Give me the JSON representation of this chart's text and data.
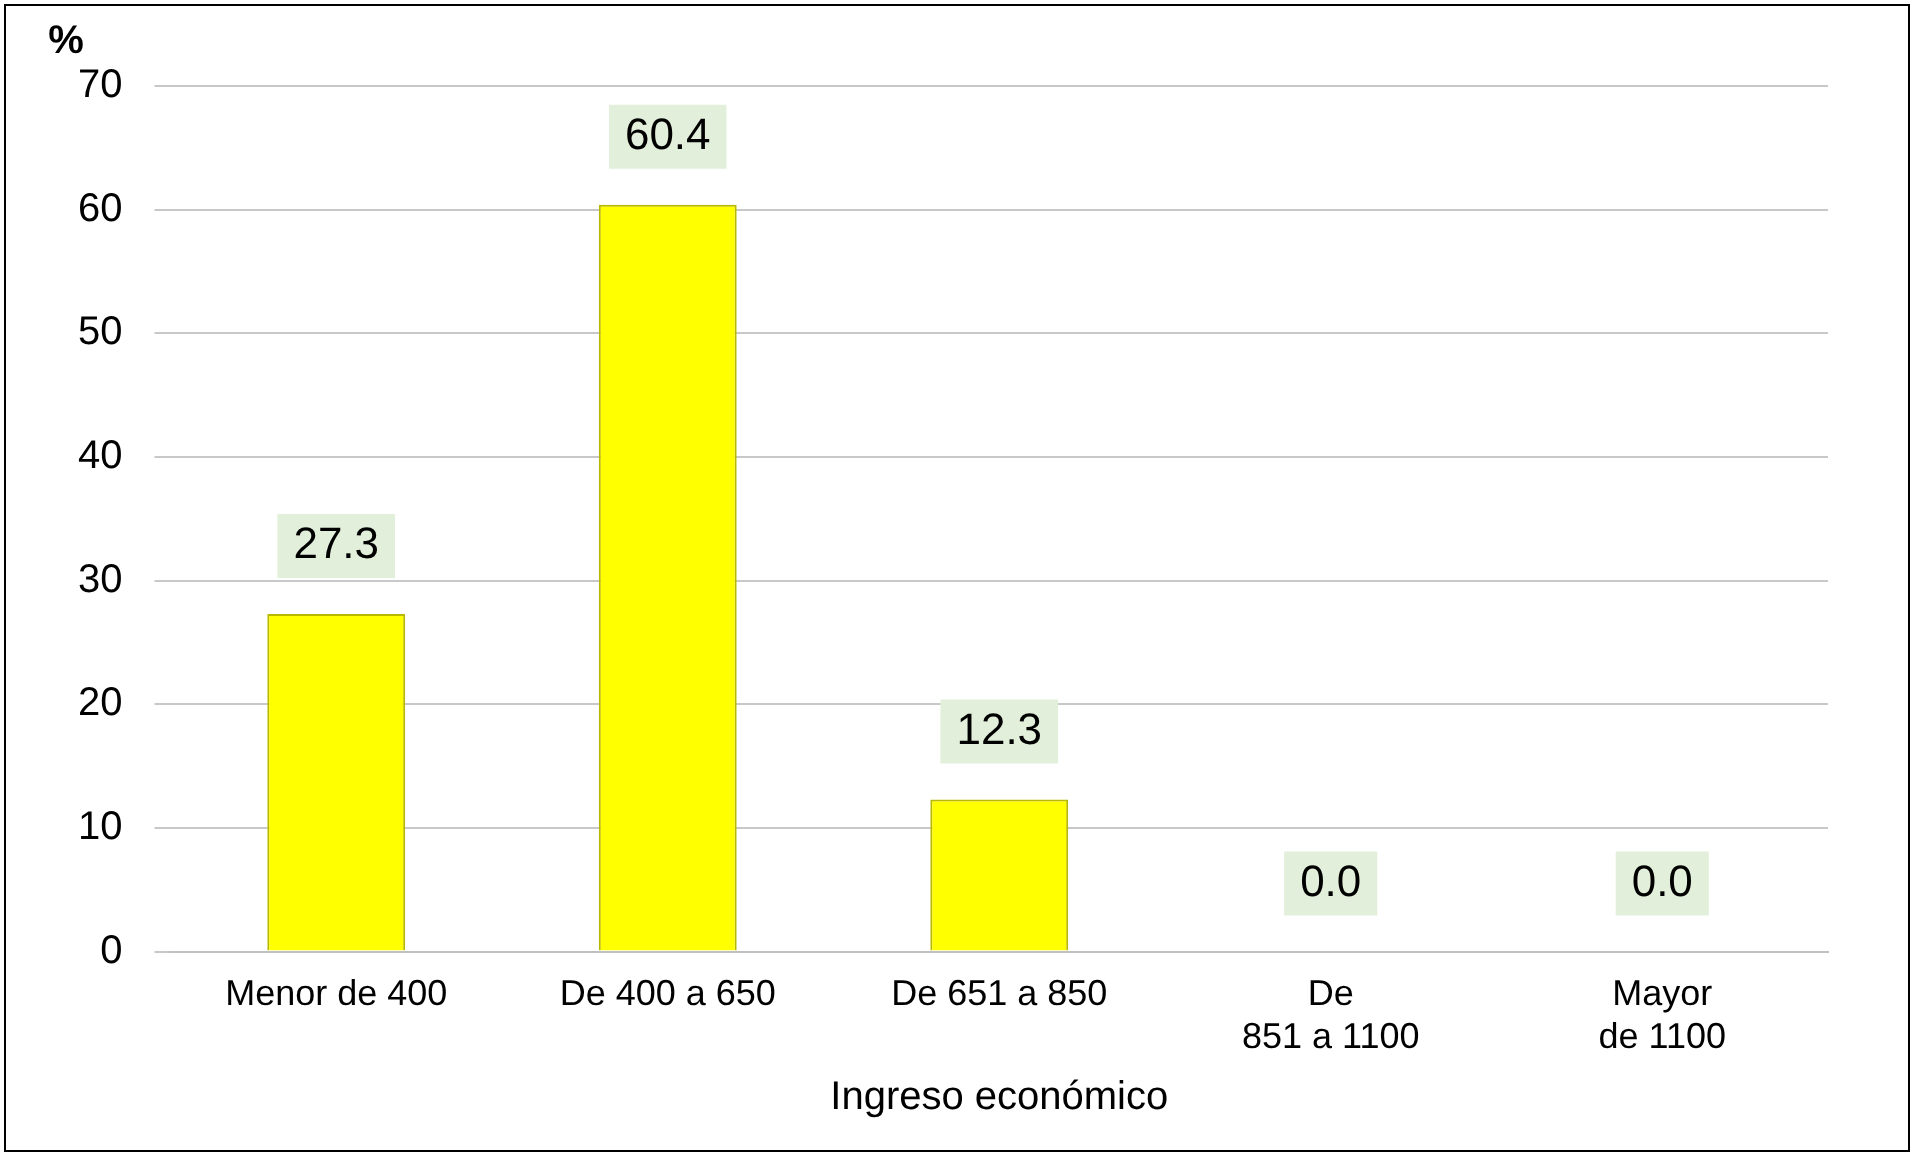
{
  "chart_data": {
    "type": "bar",
    "xlabel": "Ingreso económico",
    "ylabel": "%",
    "categories": [
      "Menor de 400",
      "De 400 a 650",
      "De 651 a 850",
      "De 851 a 1100",
      "Mayor de 1100"
    ],
    "values": [
      27.3,
      60.4,
      12.3,
      0.0,
      0.0
    ],
    "value_labels": [
      "27.3",
      "60.4",
      "12.3",
      "0.0",
      "0.0"
    ],
    "color": "#ffff00",
    "ylim": [
      0,
      70
    ],
    "yticks": [
      0,
      10,
      20,
      30,
      40,
      50,
      60,
      70
    ],
    "grid": "y",
    "legend": false
  }
}
